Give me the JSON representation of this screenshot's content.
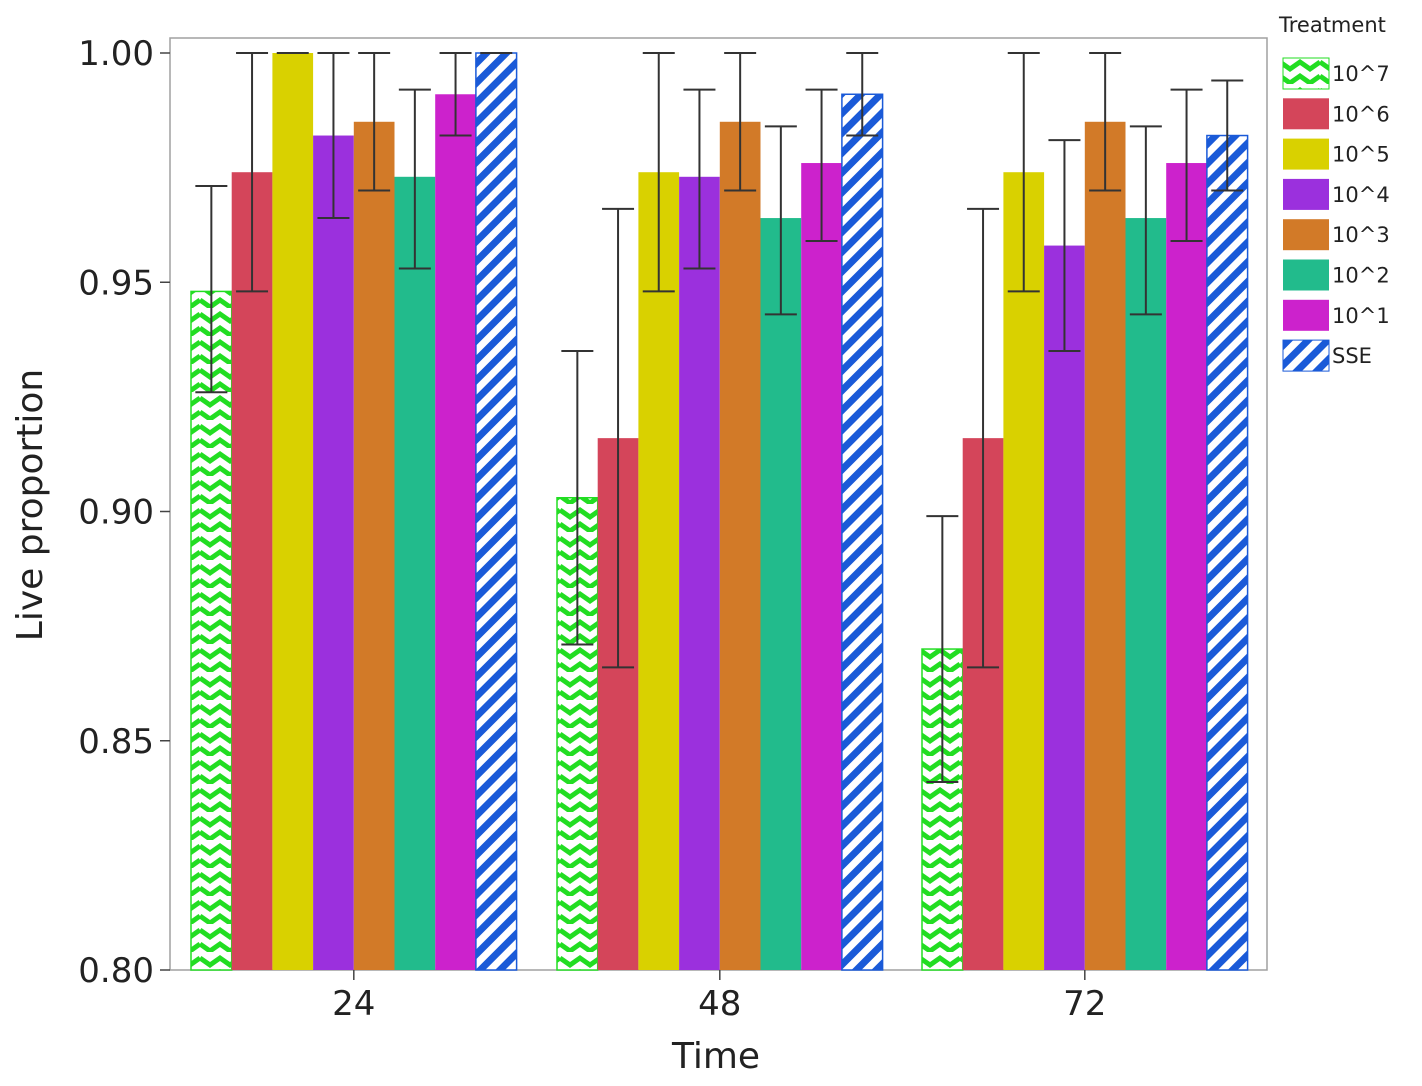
{
  "chart_data": {
    "type": "bar",
    "title": "",
    "xlabel": "Time",
    "ylabel": "Live proportion",
    "ylim": [
      0.8,
      1.0
    ],
    "yticks": [
      "0.80",
      "0.85",
      "0.90",
      "0.95",
      "1.00"
    ],
    "categories": [
      "24",
      "48",
      "72"
    ],
    "legend": {
      "title": "Treatment",
      "placement": "right"
    },
    "grid": false,
    "error_bars": true,
    "series": [
      {
        "name": "10^7",
        "color": "#22dd22",
        "pattern": "zigzag",
        "values": [
          0.948,
          0.903,
          0.87
        ],
        "err_low": [
          0.926,
          0.871,
          0.841
        ],
        "err_high": [
          0.971,
          0.935,
          0.899
        ]
      },
      {
        "name": "10^6",
        "color": "#d4455a",
        "pattern": "solid",
        "values": [
          0.974,
          0.916,
          0.916
        ],
        "err_low": [
          0.948,
          0.866,
          0.866
        ],
        "err_high": [
          1.0,
          0.966,
          0.966
        ]
      },
      {
        "name": "10^5",
        "color": "#d9d100",
        "pattern": "solid",
        "values": [
          1.0,
          0.974,
          0.974
        ],
        "err_low": [
          1.0,
          0.948,
          0.948
        ],
        "err_high": [
          1.0,
          1.0,
          1.0
        ]
      },
      {
        "name": "10^4",
        "color": "#9b30dd",
        "pattern": "solid",
        "values": [
          0.982,
          0.973,
          0.958
        ],
        "err_low": [
          0.964,
          0.953,
          0.935
        ],
        "err_high": [
          1.0,
          0.992,
          0.981
        ]
      },
      {
        "name": "10^3",
        "color": "#d27a28",
        "pattern": "solid",
        "values": [
          0.985,
          0.985,
          0.985
        ],
        "err_low": [
          0.97,
          0.97,
          0.97
        ],
        "err_high": [
          1.0,
          1.0,
          1.0
        ]
      },
      {
        "name": "10^2",
        "color": "#22bb8c",
        "pattern": "solid",
        "values": [
          0.973,
          0.964,
          0.964
        ],
        "err_low": [
          0.953,
          0.943,
          0.943
        ],
        "err_high": [
          0.992,
          0.984,
          0.984
        ]
      },
      {
        "name": "10^1",
        "color": "#cc22cc",
        "pattern": "solid",
        "values": [
          0.991,
          0.976,
          0.976
        ],
        "err_low": [
          0.982,
          0.959,
          0.959
        ],
        "err_high": [
          1.0,
          0.992,
          0.992
        ]
      },
      {
        "name": "SSE",
        "color": "#1a5ad8",
        "pattern": "diagonal-stripes",
        "values": [
          1.0,
          0.991,
          0.982
        ],
        "err_low": [
          1.0,
          0.982,
          0.97
        ],
        "err_high": [
          1.0,
          1.0,
          0.994
        ]
      }
    ]
  }
}
